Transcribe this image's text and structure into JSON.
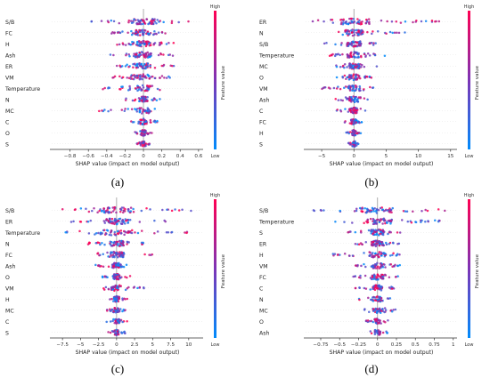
{
  "figure": {
    "captions": [
      "(a)",
      "(b)",
      "(c)",
      "(d)"
    ]
  },
  "chart_data": [
    {
      "type": "scatter",
      "panel": "(a)",
      "title": "",
      "xlabel": "SHAP value (impact on model output)",
      "xlim": [
        -1.0,
        0.65
      ],
      "xticks": [
        -0.8,
        -0.6,
        -0.4,
        -0.2,
        0.0,
        0.2,
        0.4,
        0.6
      ],
      "features": [
        "S/B",
        "FC",
        "H",
        "Ash",
        "ER",
        "VM",
        "Temperature",
        "N",
        "MC",
        "C",
        "O",
        "S"
      ],
      "spread": [
        [
          -0.6,
          0.5
        ],
        [
          -0.4,
          0.25
        ],
        [
          -0.3,
          0.35
        ],
        [
          -0.4,
          0.35
        ],
        [
          -0.3,
          0.35
        ],
        [
          -0.35,
          0.3
        ],
        [
          -0.45,
          0.2
        ],
        [
          -0.2,
          0.2
        ],
        [
          -0.5,
          0.15
        ],
        [
          -0.15,
          0.15
        ],
        [
          -0.1,
          0.1
        ],
        [
          -0.08,
          0.08
        ]
      ],
      "colorbar": {
        "high": "High",
        "low": "Low",
        "label": "Feature value",
        "high_color": "#ff0052",
        "low_color": "#008bfb"
      },
      "grid": false,
      "legend": "colorbar right"
    },
    {
      "type": "scatter",
      "panel": "(b)",
      "title": "",
      "xlabel": "SHAP value (impact on model output)",
      "xlim": [
        -7.5,
        16
      ],
      "xticks": [
        -5,
        0,
        5,
        10,
        15
      ],
      "features": [
        "ER",
        "N",
        "S/B",
        "Temperature",
        "MC",
        "O",
        "VM",
        "Ash",
        "C",
        "FC",
        "H",
        "S"
      ],
      "spread": [
        [
          -6.5,
          14
        ],
        [
          -3,
          8
        ],
        [
          -5,
          4
        ],
        [
          -4,
          5
        ],
        [
          -3,
          4
        ],
        [
          -3,
          3
        ],
        [
          -5,
          3
        ],
        [
          -4,
          2.5
        ],
        [
          -3,
          2
        ],
        [
          -1.5,
          1.5
        ],
        [
          -1.2,
          1.2
        ],
        [
          -1,
          1
        ]
      ],
      "colorbar": {
        "high": "High",
        "low": "Low",
        "label": "Feature value",
        "high_color": "#ff0052",
        "low_color": "#008bfb"
      },
      "grid": false,
      "legend": "colorbar right"
    },
    {
      "type": "scatter",
      "panel": "(c)",
      "title": "",
      "xlabel": "SHAP value (impact on model output)",
      "xlim": [
        -9,
        12
      ],
      "xticks": [
        -7.5,
        -5.0,
        -2.5,
        0.0,
        2.5,
        5.0,
        7.5,
        10.0
      ],
      "features": [
        "S/B",
        "ER",
        "Temperature",
        "N",
        "FC",
        "Ash",
        "O",
        "VM",
        "H",
        "MC",
        "C",
        "S"
      ],
      "spread": [
        [
          -8,
          11
        ],
        [
          -7,
          7
        ],
        [
          -8,
          10
        ],
        [
          -4,
          4
        ],
        [
          -3,
          5
        ],
        [
          -3,
          2
        ],
        [
          -2,
          2
        ],
        [
          -2,
          4
        ],
        [
          -1.5,
          1.5
        ],
        [
          -1.5,
          1.5
        ],
        [
          -1.5,
          1.5
        ],
        [
          -1.2,
          1.2
        ]
      ],
      "colorbar": {
        "high": "High",
        "low": "Low",
        "label": "Feature value",
        "high_color": "#ff0052",
        "low_color": "#008bfb"
      },
      "grid": false,
      "legend": "colorbar right"
    },
    {
      "type": "scatter",
      "panel": "(d)",
      "title": "",
      "xlabel": "SHAP value (impact on model output)",
      "xlim": [
        -0.95,
        1.05
      ],
      "xticks": [
        -0.75,
        -0.5,
        -0.25,
        0.0,
        0.25,
        0.5,
        0.75,
        1.0
      ],
      "features": [
        "S/B",
        "Temperature",
        "S",
        "ER",
        "H",
        "VM",
        "FC",
        "C",
        "N",
        "MC",
        "O",
        "Ash"
      ],
      "spread": [
        [
          -0.85,
          0.9
        ],
        [
          -0.6,
          0.85
        ],
        [
          -0.4,
          0.3
        ],
        [
          -0.35,
          0.3
        ],
        [
          -0.6,
          0.3
        ],
        [
          -0.3,
          0.35
        ],
        [
          -0.35,
          0.3
        ],
        [
          -0.3,
          0.25
        ],
        [
          -0.3,
          0.2
        ],
        [
          -0.25,
          0.35
        ],
        [
          -0.15,
          0.15
        ],
        [
          -0.15,
          0.15
        ]
      ],
      "colorbar": {
        "high": "High",
        "low": "Low",
        "label": "Feature value",
        "high_color": "#ff0052",
        "low_color": "#008bfb"
      },
      "grid": false,
      "legend": "colorbar right"
    }
  ]
}
